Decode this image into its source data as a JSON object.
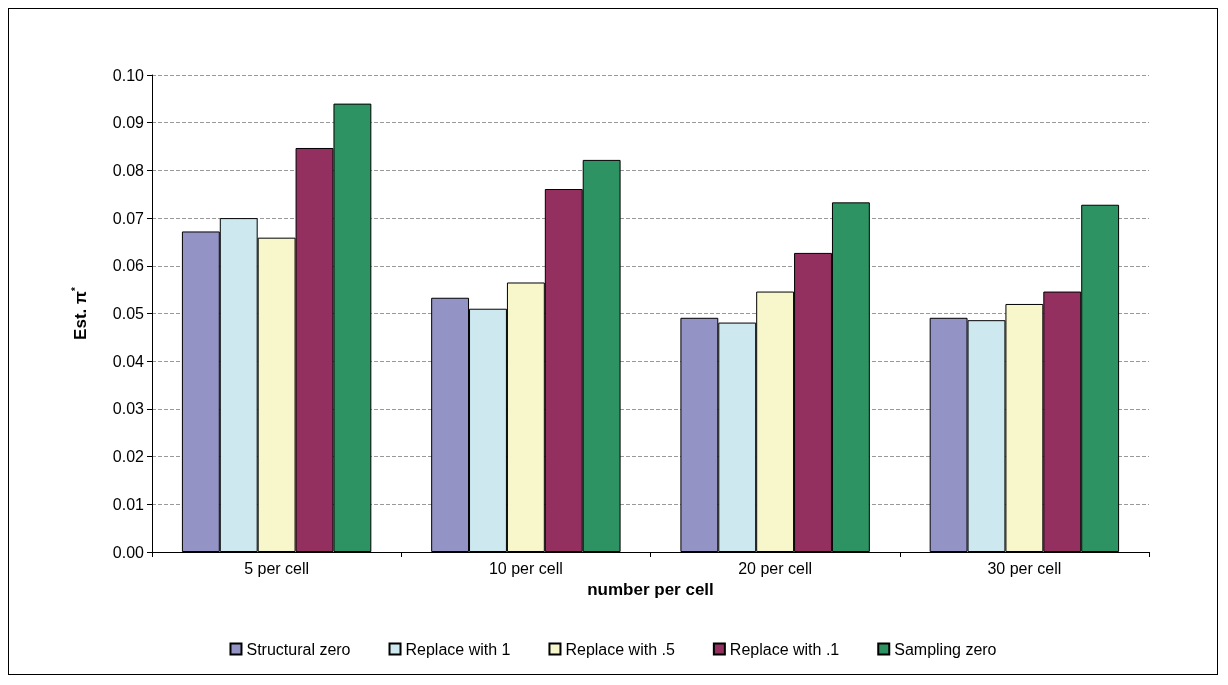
{
  "chart_data": {
    "type": "bar",
    "xlabel": "number per cell",
    "ylabel": "Est. π$^{*}$",
    "categories": [
      "5 per cell",
      "10 per cell",
      "20 per cell",
      "30 per cell"
    ],
    "series": [
      {
        "name": "Structural zero",
        "color": "#9493c6",
        "values": [
          0.0672,
          0.0533,
          0.0491,
          0.0491
        ]
      },
      {
        "name": "Replace with 1",
        "color": "#cde9ef",
        "values": [
          0.07,
          0.051,
          0.0481,
          0.0486
        ]
      },
      {
        "name": "Replace with .5",
        "color": "#f8f6cb",
        "values": [
          0.0659,
          0.0565,
          0.0546,
          0.052
        ]
      },
      {
        "name": "Replace with .1",
        "color": "#93305f",
        "values": [
          0.0847,
          0.0761,
          0.0627,
          0.0546
        ]
      },
      {
        "name": "Sampling zero",
        "color": "#2e9362",
        "values": [
          0.094,
          0.0822,
          0.0733,
          0.0728
        ]
      }
    ],
    "ylim": [
      0,
      0.1
    ],
    "yticks": [
      {
        "value": 0,
        "label": "0.00"
      },
      0.01,
      0.02,
      0.03,
      0.04,
      0.05,
      0.06,
      0.07,
      0.08,
      0.09,
      {
        "value": 0.1,
        "label": "0.10"
      }
    ],
    "grid": "y",
    "legend": "bottom"
  }
}
